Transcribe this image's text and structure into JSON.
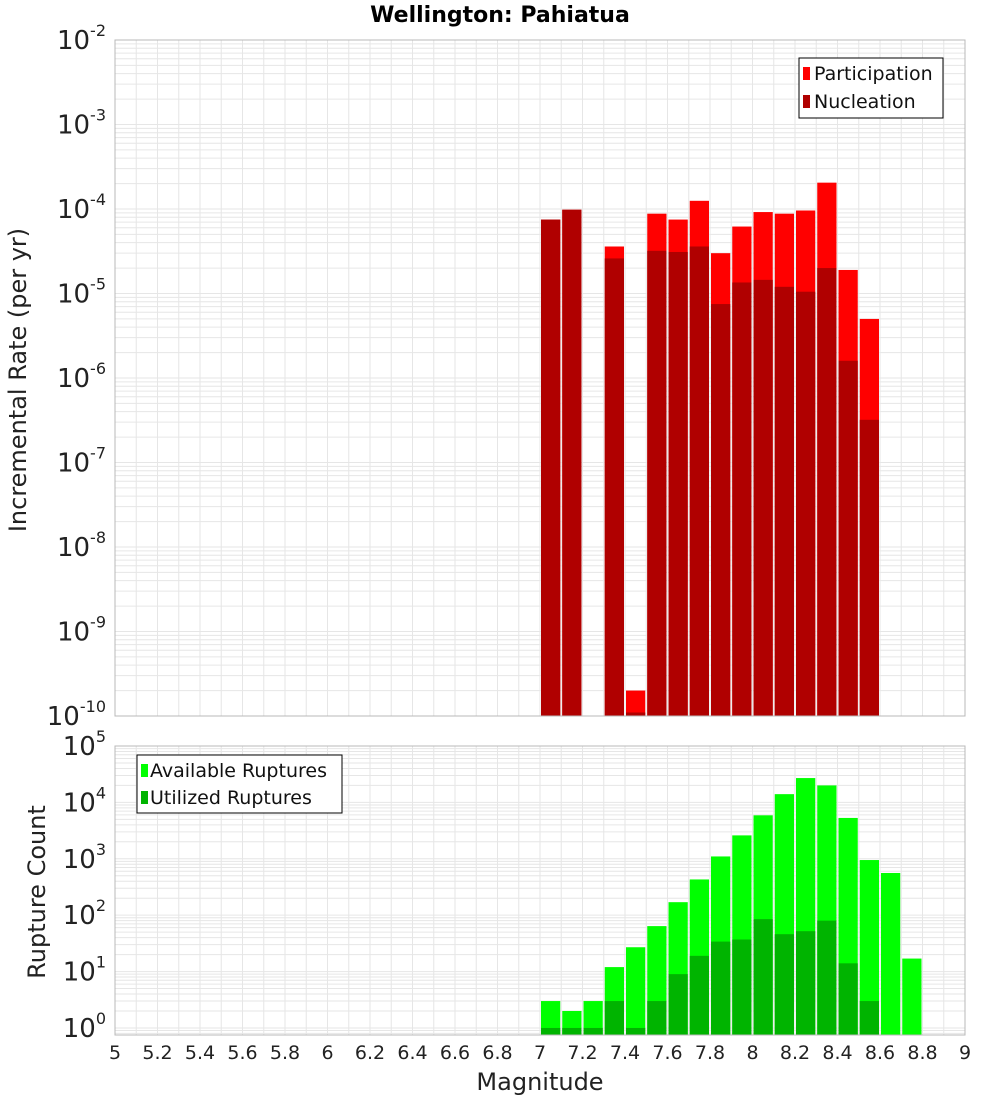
{
  "chart_title": "Wellington: Pahiatua",
  "chart_data": [
    {
      "type": "bar",
      "panel": "top",
      "ylabel": "Incremental Rate (per yr)",
      "xlabel": "Magnitude",
      "yscale": "log",
      "ylim": [
        1e-10,
        0.01
      ],
      "xlim": [
        5,
        9
      ],
      "bin_width": 0.1,
      "grid": true,
      "legend_position": "top-right",
      "y_ticks": [
        {
          "base": "10",
          "exp": "-10",
          "value": 1e-10
        },
        {
          "base": "10",
          "exp": "-9",
          "value": 1e-09
        },
        {
          "base": "10",
          "exp": "-8",
          "value": 1e-08
        },
        {
          "base": "10",
          "exp": "-7",
          "value": 1e-07
        },
        {
          "base": "10",
          "exp": "-6",
          "value": 1e-06
        },
        {
          "base": "10",
          "exp": "-5",
          "value": 1e-05
        },
        {
          "base": "10",
          "exp": "-4",
          "value": 0.0001
        },
        {
          "base": "10",
          "exp": "-3",
          "value": 0.001
        },
        {
          "base": "10",
          "exp": "-2",
          "value": 0.01
        }
      ],
      "series": [
        {
          "name": "Participation",
          "color": "#ff0000",
          "x": [
            7.05,
            7.15,
            7.35,
            7.45,
            7.55,
            7.65,
            7.75,
            7.85,
            7.95,
            8.05,
            8.15,
            8.25,
            8.35,
            8.45,
            8.55
          ],
          "values": [
            7.5e-05,
            9.8e-05,
            3.6e-05,
            2e-10,
            8.8e-05,
            7.5e-05,
            0.000125,
            3e-05,
            6.2e-05,
            9.2e-05,
            8.8e-05,
            9.6e-05,
            0.000205,
            1.9e-05,
            5e-06
          ]
        },
        {
          "name": "Nucleation",
          "color": "#b00000",
          "x": [
            7.05,
            7.15,
            7.35,
            7.45,
            7.55,
            7.65,
            7.75,
            7.85,
            7.95,
            8.05,
            8.15,
            8.25,
            8.35,
            8.45,
            8.55
          ],
          "values": [
            7.5e-05,
            9.8e-05,
            2.6e-05,
            1.1e-10,
            3.2e-05,
            3.1e-05,
            3.6e-05,
            7.5e-06,
            1.35e-05,
            1.45e-05,
            1.2e-05,
            1.05e-05,
            2e-05,
            1.6e-06,
            3.2e-07
          ]
        }
      ]
    },
    {
      "type": "bar",
      "panel": "bottom",
      "ylabel": "Rupture Count",
      "xlabel": "Magnitude",
      "yscale": "log",
      "ylim": [
        0.75,
        100000.0
      ],
      "xlim": [
        5,
        9
      ],
      "bin_width": 0.1,
      "grid": true,
      "legend_position": "top-left",
      "y_ticks": [
        {
          "base": "10",
          "exp": "0",
          "value": 1
        },
        {
          "base": "10",
          "exp": "1",
          "value": 10
        },
        {
          "base": "10",
          "exp": "2",
          "value": 100
        },
        {
          "base": "10",
          "exp": "3",
          "value": 1000
        },
        {
          "base": "10",
          "exp": "4",
          "value": 10000
        },
        {
          "base": "10",
          "exp": "5",
          "value": 100000
        }
      ],
      "series": [
        {
          "name": "Available Ruptures",
          "color": "#00ff00",
          "x": [
            7.05,
            7.15,
            7.25,
            7.35,
            7.45,
            7.55,
            7.65,
            7.75,
            7.85,
            7.95,
            8.05,
            8.15,
            8.25,
            8.35,
            8.45,
            8.55,
            8.65,
            8.75
          ],
          "values": [
            3,
            2,
            3,
            12,
            27,
            64,
            170,
            430,
            1100,
            2600,
            5900,
            14000,
            27000,
            20000,
            5300,
            950,
            560,
            17
          ]
        },
        {
          "name": "Utilized Ruptures",
          "color": "#00b400",
          "x": [
            7.05,
            7.15,
            7.25,
            7.35,
            7.45,
            7.55,
            7.65,
            7.75,
            7.85,
            7.95,
            8.05,
            8.15,
            8.25,
            8.35,
            8.45,
            8.55
          ],
          "values": [
            1,
            1,
            1,
            3,
            1,
            3,
            9,
            19,
            34,
            37,
            85,
            46,
            52,
            80,
            14,
            3
          ]
        }
      ]
    }
  ],
  "x_tick_labels": [
    "5",
    "5.2",
    "5.4",
    "5.6",
    "5.8",
    "6",
    "6.2",
    "6.4",
    "6.6",
    "6.8",
    "7",
    "7.2",
    "7.4",
    "7.6",
    "7.8",
    "8",
    "8.2",
    "8.4",
    "8.6",
    "8.8",
    "9"
  ],
  "x_tick_values": [
    5,
    5.2,
    5.4,
    5.6,
    5.8,
    6,
    6.2,
    6.4,
    6.6,
    6.8,
    7,
    7.2,
    7.4,
    7.6,
    7.8,
    8,
    8.2,
    8.4,
    8.6,
    8.8,
    9
  ],
  "colors": {
    "grid": "#e6e6e6",
    "plot_border": "#b8b8b8",
    "bar_gap": "#ffffff"
  }
}
